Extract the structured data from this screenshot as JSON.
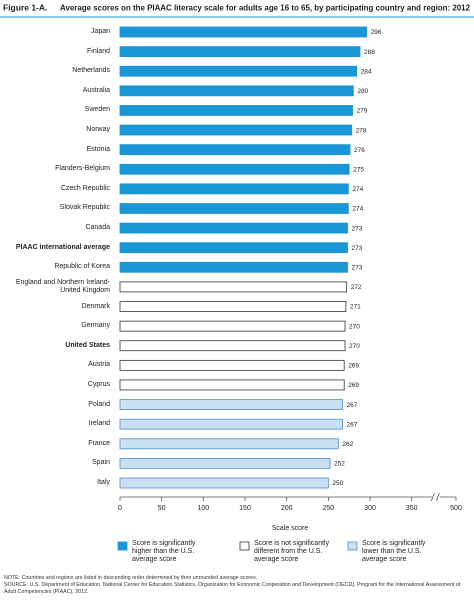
{
  "chart_data": {
    "type": "bar",
    "figure_label": "Figure 1-A.",
    "title": "Average scores on the PIAAC literacy scale for adults age 16 to 65, by participating country and region: 2012",
    "x_label": "Scale score",
    "categories": [
      "Japan",
      "Finland",
      "Netherlands",
      "Australia",
      "Sweden",
      "Norway",
      "Estonia",
      "Flanders-Belgium",
      "Czech Republic",
      "Slovak Republic",
      "Canada",
      "PIAAC international average",
      "Republic of Korea",
      "England and Northern Ireland-\nUnited Kingdom",
      "Denmark",
      "Germany",
      "United States",
      "Austria",
      "Cyprus",
      "Poland",
      "Ireland",
      "France",
      "Spain",
      "Italy"
    ],
    "values": [
      296,
      288,
      284,
      280,
      279,
      278,
      276,
      275,
      274,
      274,
      273,
      273,
      273,
      272,
      271,
      270,
      270,
      269,
      269,
      267,
      267,
      262,
      252,
      250
    ],
    "bar_groups": [
      0,
      0,
      0,
      0,
      0,
      0,
      0,
      0,
      0,
      0,
      0,
      0,
      0,
      1,
      1,
      1,
      1,
      1,
      1,
      2,
      2,
      2,
      2,
      2
    ],
    "bold_categories": [
      11,
      16
    ],
    "legend": [
      {
        "label": "Score is significantly higher than the U.S. average score",
        "fill": "#1996d5",
        "stroke": "#1996d5"
      },
      {
        "label": "Score is not significantly different from the U.S. average score",
        "fill": "#ffffff",
        "stroke": "#333333"
      },
      {
        "label": "Score is significantly lower than the U.S. average score",
        "fill": "#c9dff4",
        "stroke": "#4f8fcf"
      }
    ],
    "xlim": [
      0,
      500
    ],
    "axis_break": [
      350,
      500
    ],
    "xticks": [
      0,
      50,
      100,
      150,
      200,
      250,
      300,
      350,
      500
    ],
    "notes": [
      "NOTE: Countries and regions are listed in descending order determined by their unrounded average scores.",
      "SOURCE: U.S. Department of Education, National Center for Education Statistics, Organization for Economic Cooperation and Development (OECD), Program for the International Assessment of Adult Competencies (PIAAC), 2012."
    ]
  }
}
